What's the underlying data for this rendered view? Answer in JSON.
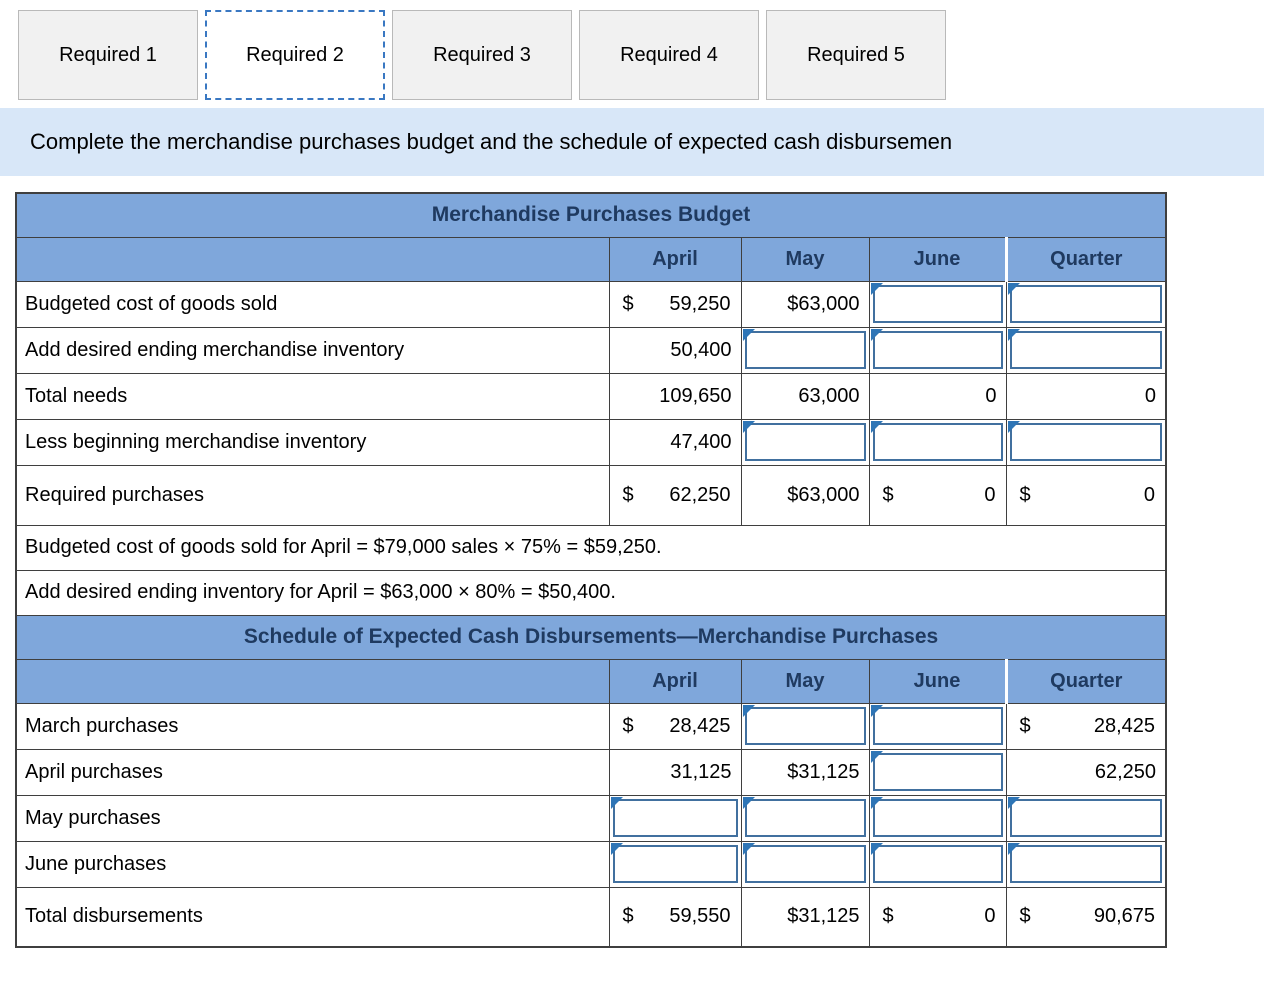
{
  "selected_tab": "Required 2",
  "tabs": [
    {
      "label": "Required 1"
    },
    {
      "label": "Required 2"
    },
    {
      "label": "Required 3"
    },
    {
      "label": "Required 4"
    },
    {
      "label": "Required 5"
    }
  ],
  "instruction": "Complete the merchandise purchases budget and the schedule of expected cash disbursemen",
  "colors": {
    "header_blue": "#7FA7DB",
    "header_text": "#1F3A60",
    "banner_bg": "#D8E7F8",
    "input_border": "#41709F",
    "marker": "#2E75B6",
    "tab_selected_border": "#3A78C2",
    "grid": "#3F3F3F"
  },
  "budget": {
    "title": "Merchandise Purchases Budget",
    "columns": [
      "April",
      "May",
      "June",
      "Quarter"
    ],
    "rows": [
      {
        "label": "Budgeted cost of goods sold",
        "cells": [
          {
            "t": "cur",
            "pre": "$",
            "val": "59,250"
          },
          {
            "t": "filled",
            "val": "$63,000"
          },
          {
            "t": "box"
          },
          {
            "t": "box"
          }
        ]
      },
      {
        "label": "Add desired ending merchandise inventory",
        "cells": [
          {
            "t": "num",
            "val": "50,400"
          },
          {
            "t": "box"
          },
          {
            "t": "box"
          },
          {
            "t": "box"
          }
        ]
      },
      {
        "label": "Total needs",
        "cells": [
          {
            "t": "num",
            "val": "109,650"
          },
          {
            "t": "num",
            "val": "63,000"
          },
          {
            "t": "num",
            "val": "0"
          },
          {
            "t": "num",
            "val": "0"
          }
        ]
      },
      {
        "label": "Less beginning merchandise inventory",
        "cells": [
          {
            "t": "num",
            "val": "47,400"
          },
          {
            "t": "box"
          },
          {
            "t": "box"
          },
          {
            "t": "box"
          }
        ]
      },
      {
        "label": "Required purchases",
        "total": true,
        "cells": [
          {
            "t": "cur",
            "pre": "$",
            "val": "62,250"
          },
          {
            "t": "filled",
            "val": "$63,000"
          },
          {
            "t": "cur",
            "pre": "$",
            "val": "0"
          },
          {
            "t": "cur",
            "pre": "$",
            "val": "0"
          }
        ]
      }
    ],
    "notes": [
      "Budgeted cost of goods sold for April = $79,000 sales × 75% = $59,250.",
      "Add desired ending inventory for April = $63,000 × 80% = $50,400."
    ]
  },
  "disbursements": {
    "title": "Schedule of Expected Cash Disbursements—Merchandise Purchases",
    "columns": [
      "April",
      "May",
      "June",
      "Quarter"
    ],
    "rows": [
      {
        "label": "March purchases",
        "cells": [
          {
            "t": "cur",
            "pre": "$",
            "val": "28,425"
          },
          {
            "t": "box"
          },
          {
            "t": "box"
          },
          {
            "t": "cur",
            "pre": "$",
            "val": "28,425"
          }
        ]
      },
      {
        "label": "April purchases",
        "cells": [
          {
            "t": "num",
            "val": "31,125"
          },
          {
            "t": "filled",
            "val": "$31,125"
          },
          {
            "t": "box"
          },
          {
            "t": "num",
            "val": "62,250"
          }
        ]
      },
      {
        "label": "May purchases",
        "cells": [
          {
            "t": "box"
          },
          {
            "t": "box"
          },
          {
            "t": "box"
          },
          {
            "t": "box"
          }
        ]
      },
      {
        "label": "June purchases",
        "cells": [
          {
            "t": "box"
          },
          {
            "t": "box"
          },
          {
            "t": "box"
          },
          {
            "t": "box"
          }
        ]
      },
      {
        "label": "Total disbursements",
        "total": true,
        "cells": [
          {
            "t": "cur",
            "pre": "$",
            "val": "59,550"
          },
          {
            "t": "filled",
            "val": "$31,125"
          },
          {
            "t": "cur",
            "pre": "$",
            "val": "0"
          },
          {
            "t": "cur",
            "pre": "$",
            "val": "90,675"
          }
        ]
      }
    ]
  }
}
